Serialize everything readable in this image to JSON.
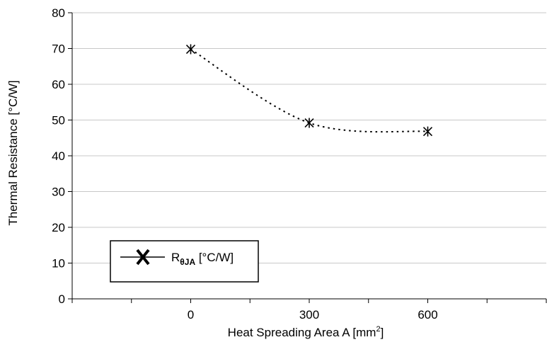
{
  "chart_data": {
    "type": "line",
    "xlabel": "Heat Spreading Area A [mm",
    "xlabel_sup": "2",
    "xlabel_end": "]",
    "ylabel": "Thermal Resistance [°C/W]",
    "x_ticks": [
      0,
      300,
      600
    ],
    "x_tick_labels": [
      "0",
      "300",
      "600"
    ],
    "xlim": [
      -300,
      900
    ],
    "ylim": [
      0,
      80
    ],
    "y_ticks": [
      0,
      10,
      20,
      30,
      40,
      50,
      60,
      70,
      80
    ],
    "y_tick_labels": [
      "0",
      "10",
      "20",
      "30",
      "40",
      "50",
      "60",
      "70",
      "80"
    ],
    "grid": "horizontal",
    "legend_position": "bottom-left",
    "series": [
      {
        "name_main": "R",
        "name_sub": "θJA",
        "name_end": " [°C/W]",
        "marker": "asterisk",
        "line_style": "dotted",
        "color": "#000000",
        "x": [
          0,
          300,
          600
        ],
        "y": [
          69.8,
          49.2,
          46.8
        ]
      }
    ]
  }
}
